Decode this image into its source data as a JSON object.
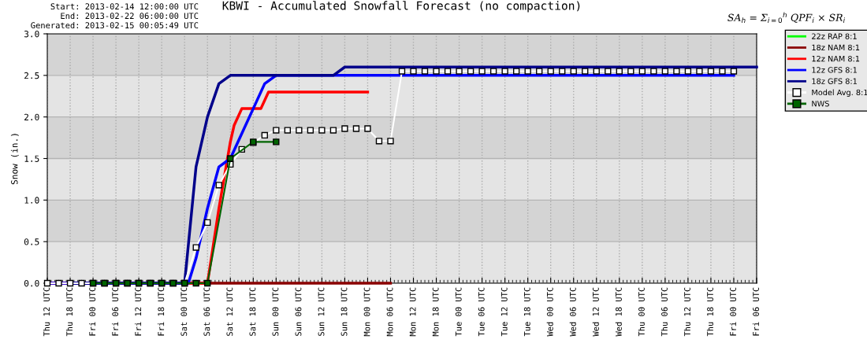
{
  "chart_data": {
    "type": "line",
    "title": "KBWI - Accumulated Snowfall Forecast (no compaction)",
    "ylabel": "Snow (in.)",
    "annotations": [
      "Start: 2013-02-14 12:00:00 UTC",
      "End: 2013-02-22 06:00:00 UTC",
      "Generated: 2013-02-15 00:05:49 UTC",
      "SA$_{h}$ = Σ$_{i=0}$$^{h}$ QPF$_{i}$ × SR$_{i}$"
    ],
    "xlim": [
      "2013-02-14T12:00",
      "2013-02-22T06:00"
    ],
    "xticks": [
      {
        "value": "2013-02-14T12:00",
        "label": "Thu 12 UTC"
      },
      {
        "value": "2013-02-14T18:00",
        "label": "Thu 18 UTC"
      },
      {
        "value": "2013-02-15T00:00",
        "label": "Fri 00 UTC"
      },
      {
        "value": "2013-02-15T06:00",
        "label": "Fri 06 UTC"
      },
      {
        "value": "2013-02-15T12:00",
        "label": "Fri 12 UTC"
      },
      {
        "value": "2013-02-15T18:00",
        "label": "Fri 18 UTC"
      },
      {
        "value": "2013-02-16T00:00",
        "label": "Sat 00 UTC"
      },
      {
        "value": "2013-02-16T06:00",
        "label": "Sat 06 UTC"
      },
      {
        "value": "2013-02-16T12:00",
        "label": "Sat 12 UTC"
      },
      {
        "value": "2013-02-16T18:00",
        "label": "Sat 18 UTC"
      },
      {
        "value": "2013-02-17T00:00",
        "label": "Sun 00 UTC"
      },
      {
        "value": "2013-02-17T06:00",
        "label": "Sun 06 UTC"
      },
      {
        "value": "2013-02-17T12:00",
        "label": "Sun 12 UTC"
      },
      {
        "value": "2013-02-17T18:00",
        "label": "Sun 18 UTC"
      },
      {
        "value": "2013-02-18T00:00",
        "label": "Mon 00 UTC"
      },
      {
        "value": "2013-02-18T06:00",
        "label": "Mon 06 UTC"
      },
      {
        "value": "2013-02-18T12:00",
        "label": "Mon 12 UTC"
      },
      {
        "value": "2013-02-18T18:00",
        "label": "Mon 18 UTC"
      },
      {
        "value": "2013-02-19T00:00",
        "label": "Tue 00 UTC"
      },
      {
        "value": "2013-02-19T06:00",
        "label": "Tue 06 UTC"
      },
      {
        "value": "2013-02-19T12:00",
        "label": "Tue 12 UTC"
      },
      {
        "value": "2013-02-19T18:00",
        "label": "Tue 18 UTC"
      },
      {
        "value": "2013-02-20T00:00",
        "label": "Wed 00 UTC"
      },
      {
        "value": "2013-02-20T06:00",
        "label": "Wed 06 UTC"
      },
      {
        "value": "2013-02-20T12:00",
        "label": "Wed 12 UTC"
      },
      {
        "value": "2013-02-20T18:00",
        "label": "Wed 18 UTC"
      },
      {
        "value": "2013-02-21T00:00",
        "label": "Thu 00 UTC"
      },
      {
        "value": "2013-02-21T06:00",
        "label": "Thu 06 UTC"
      },
      {
        "value": "2013-02-21T12:00",
        "label": "Thu 12 UTC"
      },
      {
        "value": "2013-02-21T18:00",
        "label": "Thu 18 UTC"
      },
      {
        "value": "2013-02-22T00:00",
        "label": "Fri 00 UTC"
      },
      {
        "value": "2013-02-22T06:00",
        "label": "Fri 06 UTC"
      }
    ],
    "ylim": [
      0,
      3
    ],
    "yticks": [
      {
        "value": 0,
        "label": "0.0"
      },
      {
        "value": 0.5,
        "label": "0.5"
      },
      {
        "value": 1,
        "label": "1.0"
      },
      {
        "value": 1.5,
        "label": "1.5"
      },
      {
        "value": 2,
        "label": "2.0"
      },
      {
        "value": 2.5,
        "label": "2.5"
      },
      {
        "value": 3,
        "label": "3.0"
      }
    ],
    "grid": true,
    "legend": "top right",
    "line_style": "solid",
    "bands": [
      {
        "axis": "y",
        "from": 0,
        "to": 0.5,
        "color": "#e4e4e4"
      },
      {
        "axis": "y",
        "from": 0.5,
        "to": 1,
        "color": "#d4d4d4"
      },
      {
        "axis": "y",
        "from": 1,
        "to": 1.5,
        "color": "#e4e4e4"
      },
      {
        "axis": "y",
        "from": 1.5,
        "to": 2,
        "color": "#d4d4d4"
      },
      {
        "axis": "y",
        "from": 2,
        "to": 2.5,
        "color": "#e4e4e4"
      },
      {
        "axis": "y",
        "from": 2.5,
        "to": 3,
        "color": "#d4d4d4"
      }
    ],
    "series": [
      {
        "name": "22z RAP 8:1",
        "color": "#00ff00",
        "marker": "none"
      },
      {
        "name": "18z NAM 8:1",
        "color": "#8b0000",
        "marker": "none",
        "x": [
          "2013-02-14T18:00",
          "2013-02-18T06:00"
        ],
        "values": [
          0,
          0
        ]
      },
      {
        "name": "12z NAM 8:1",
        "color": "#ff0000",
        "marker": "none",
        "x": [
          "2013-02-14T12:00",
          "2013-02-16T06:00",
          "2013-02-16T09:00",
          "2013-02-16T12:00",
          "2013-02-16T13:00",
          "2013-02-16T15:00",
          "2013-02-16T20:00",
          "2013-02-16T22:00",
          "2013-02-18T00:00"
        ],
        "values": [
          0,
          0,
          0.9,
          1.7,
          1.9,
          2.1,
          2.1,
          2.3,
          2.3
        ]
      },
      {
        "name": "12z GFS 8:1",
        "color": "#0000ff",
        "marker": "none",
        "x": [
          "2013-02-14T12:00",
          "2013-02-16T01:00",
          "2013-02-16T03:00",
          "2013-02-16T06:00",
          "2013-02-16T09:00",
          "2013-02-16T12:00",
          "2013-02-16T15:00",
          "2013-02-16T18:00",
          "2013-02-16T21:00",
          "2013-02-17T00:00",
          "2013-02-22T00:00"
        ],
        "values": [
          0,
          0,
          0.3,
          0.9,
          1.4,
          1.5,
          1.8,
          2.1,
          2.4,
          2.5,
          2.5
        ]
      },
      {
        "name": "18z GFS 8:1",
        "color": "#00008b",
        "marker": "none",
        "x": [
          "2013-02-14T18:00",
          "2013-02-16T00:00",
          "2013-02-16T03:00",
          "2013-02-16T06:00",
          "2013-02-16T09:00",
          "2013-02-16T12:00",
          "2013-02-17T15:00",
          "2013-02-17T18:00",
          "2013-02-22T06:00"
        ],
        "values": [
          0,
          0,
          1.4,
          2.0,
          2.4,
          2.5,
          2.5,
          2.6,
          2.6
        ]
      },
      {
        "name": "Model Avg. 8:1",
        "color": "#ffffff",
        "marker": "square",
        "x": [
          "2013-02-14T12:00",
          "2013-02-14T15:00",
          "2013-02-14T18:00",
          "2013-02-14T21:00",
          "2013-02-15T00:00",
          "2013-02-15T03:00",
          "2013-02-15T06:00",
          "2013-02-15T09:00",
          "2013-02-15T12:00",
          "2013-02-15T15:00",
          "2013-02-15T18:00",
          "2013-02-15T21:00",
          "2013-02-16T00:00",
          "2013-02-16T03:00",
          "2013-02-16T06:00",
          "2013-02-16T09:00",
          "2013-02-16T12:00",
          "2013-02-16T15:00",
          "2013-02-16T18:00",
          "2013-02-16T21:00",
          "2013-02-17T00:00",
          "2013-02-17T03:00",
          "2013-02-17T06:00",
          "2013-02-17T09:00",
          "2013-02-17T12:00",
          "2013-02-17T15:00",
          "2013-02-17T18:00",
          "2013-02-17T21:00",
          "2013-02-18T00:00",
          "2013-02-18T03:00",
          "2013-02-18T06:00",
          "2013-02-18T09:00",
          "2013-02-18T12:00",
          "2013-02-18T15:00",
          "2013-02-18T18:00",
          "2013-02-18T21:00",
          "2013-02-19T00:00",
          "2013-02-19T03:00",
          "2013-02-19T06:00",
          "2013-02-19T09:00",
          "2013-02-19T12:00",
          "2013-02-19T15:00",
          "2013-02-19T18:00",
          "2013-02-19T21:00",
          "2013-02-20T00:00",
          "2013-02-20T03:00",
          "2013-02-20T06:00",
          "2013-02-20T09:00",
          "2013-02-20T12:00",
          "2013-02-20T15:00",
          "2013-02-20T18:00",
          "2013-02-20T21:00",
          "2013-02-21T00:00",
          "2013-02-21T03:00",
          "2013-02-21T06:00",
          "2013-02-21T09:00",
          "2013-02-21T12:00",
          "2013-02-21T15:00",
          "2013-02-21T18:00",
          "2013-02-21T21:00",
          "2013-02-22T00:00"
        ],
        "values": [
          0,
          0,
          0,
          0,
          0,
          0,
          0,
          0,
          0,
          0,
          0,
          0,
          0,
          0.43,
          0.73,
          1.18,
          1.43,
          1.61,
          1.69,
          1.78,
          1.84,
          1.84,
          1.84,
          1.84,
          1.84,
          1.84,
          1.86,
          1.86,
          1.86,
          1.71,
          1.71,
          2.55,
          2.55,
          2.55,
          2.55,
          2.55,
          2.55,
          2.55,
          2.55,
          2.55,
          2.55,
          2.55,
          2.55,
          2.55,
          2.55,
          2.55,
          2.55,
          2.55,
          2.55,
          2.55,
          2.55,
          2.55,
          2.55,
          2.55,
          2.55,
          2.55,
          2.55,
          2.55,
          2.55,
          2.55,
          2.55
        ]
      },
      {
        "name": "NWS",
        "color": "#006400",
        "marker": "square",
        "x": [
          "2013-02-15T00:00",
          "2013-02-15T03:00",
          "2013-02-15T06:00",
          "2013-02-15T09:00",
          "2013-02-15T12:00",
          "2013-02-15T15:00",
          "2013-02-15T18:00",
          "2013-02-15T21:00",
          "2013-02-16T00:00",
          "2013-02-16T03:00",
          "2013-02-16T06:00",
          "2013-02-16T12:00",
          "2013-02-16T18:00",
          "2013-02-17T00:00"
        ],
        "values": [
          0,
          0,
          0,
          0,
          0,
          0,
          0,
          0,
          0,
          0,
          0,
          1.5,
          1.7,
          1.7
        ]
      }
    ]
  }
}
